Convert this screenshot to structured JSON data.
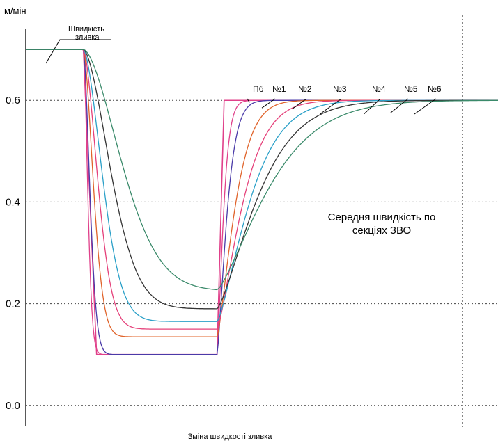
{
  "chart_data": {
    "type": "line",
    "ylabel": "м/мін",
    "xlabel": "Зміна швидкості зливка",
    "ylim": [
      -0.04,
      0.77
    ],
    "xlim": [
      0,
      100
    ],
    "yticks": [
      "0.0",
      "0.2",
      "0.4",
      "0.6"
    ],
    "ytick_values": [
      0.0,
      0.2,
      0.4,
      0.6
    ],
    "grid": true,
    "vertical_marker_x": 92.5,
    "annotations": {
      "ingot_speed": [
        "Швидкість",
        "зливка"
      ],
      "mean_speed": [
        "Середня швидкість по",
        "секціях ЗВО"
      ]
    },
    "casting_speed": {
      "name": "Швидкість зливка",
      "color": "#e0408a",
      "x": [
        0,
        12.2,
        15,
        40.5,
        42,
        100
      ],
      "y": [
        0.7,
        0.7,
        0.1,
        0.1,
        0.6,
        0.6
      ]
    },
    "series": [
      {
        "name": "Пб",
        "color": "#e0408a",
        "min": 0.1,
        "k_drop": 2.6,
        "k_rise": 0.62,
        "label_x": 47.4,
        "label_y": 0.596
      },
      {
        "name": "№1",
        "color": "#4a3aa8",
        "min": 0.1,
        "k_drop": 1.75,
        "k_rise": 0.4,
        "label_x": 50,
        "label_y": 0.585
      },
      {
        "name": "№2",
        "color": "#e0632a",
        "min": 0.135,
        "k_drop": 1.15,
        "k_rise": 0.22,
        "label_x": 56.4,
        "label_y": 0.583
      },
      {
        "name": "№3",
        "color": "#e5407a",
        "min": 0.15,
        "k_drop": 0.8,
        "k_rise": 0.155,
        "label_x": 62.3,
        "label_y": 0.573
      },
      {
        "name": "№4",
        "color": "#2aa0c8",
        "min": 0.165,
        "k_drop": 0.6,
        "k_rise": 0.12,
        "label_x": 71.6,
        "label_y": 0.573
      },
      {
        "name": "№5",
        "color": "#333333",
        "min": 0.19,
        "k_drop": 0.42,
        "k_rise": 0.095,
        "label_x": 77.2,
        "label_y": 0.575
      },
      {
        "name": "№6",
        "color": "#3a8a6a",
        "min": 0.225,
        "k_drop": 0.3,
        "k_rise": 0.075,
        "label_x": 82.3,
        "label_y": 0.573
      }
    ]
  }
}
